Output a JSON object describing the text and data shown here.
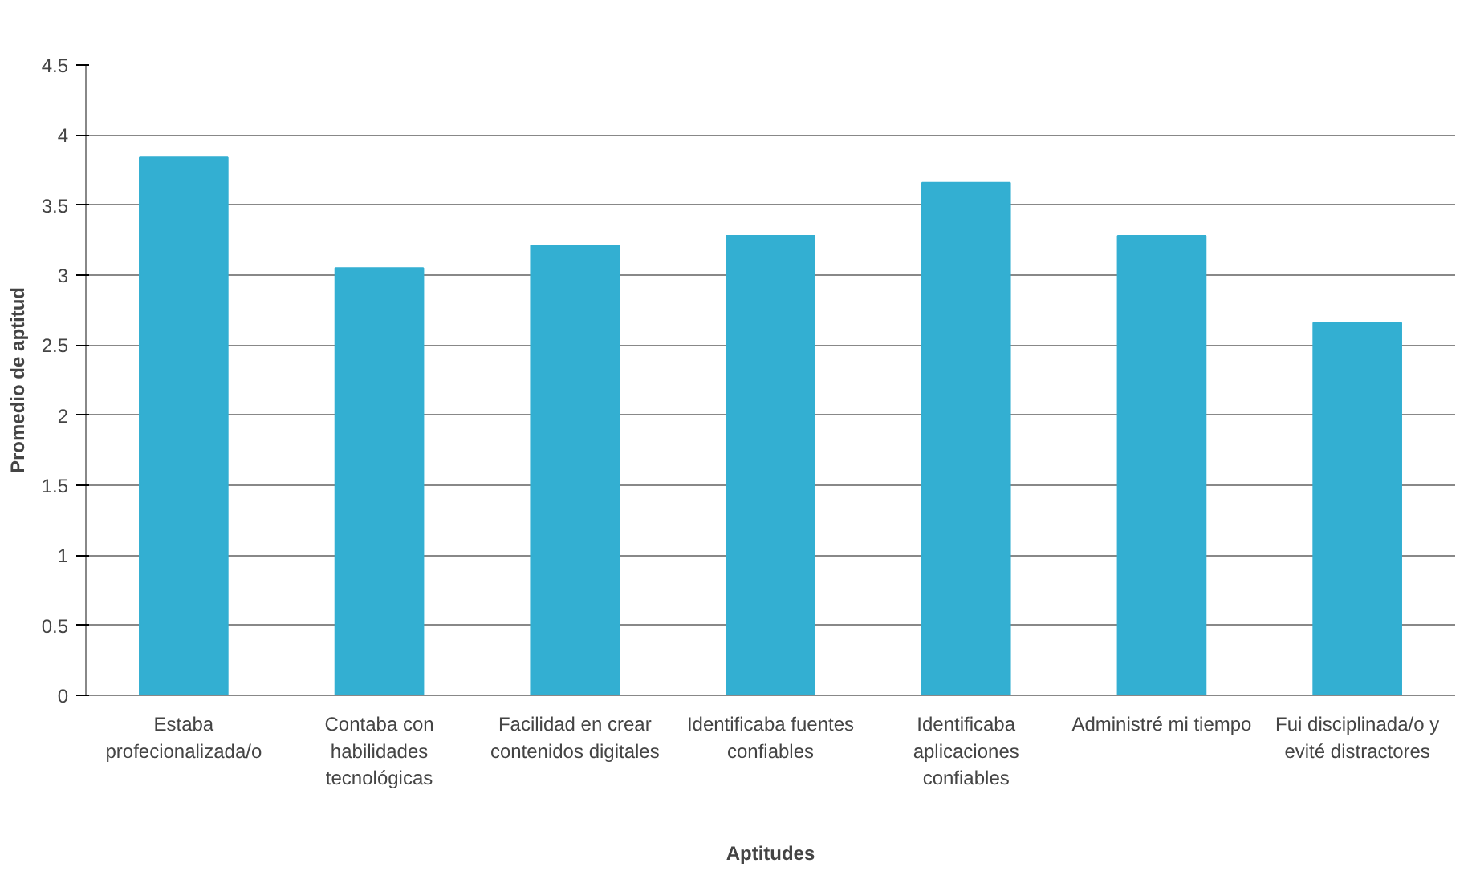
{
  "chart_data": {
    "type": "bar",
    "xlabel": "Aptitudes",
    "ylabel": "Promedio de aptitud",
    "categories": [
      "Estaba profecionalizada/o",
      "Contaba con habilidades tecnológicas",
      "Facilidad en crear contenidos digitales",
      "Identificaba fuentes confiables",
      "Identificaba aplicaciones confiables",
      "Administré mi tiempo",
      "Fui disciplinada/o y evité distractores"
    ],
    "values": [
      3.84,
      3.05,
      3.21,
      3.28,
      3.66,
      3.28,
      2.66
    ],
    "color": "#33afd2",
    "ylim": [
      0,
      4.5
    ],
    "yticks": [
      0,
      0.5,
      1,
      1.5,
      2,
      2.5,
      3,
      3.5,
      4,
      4.5
    ],
    "grid": "y"
  }
}
